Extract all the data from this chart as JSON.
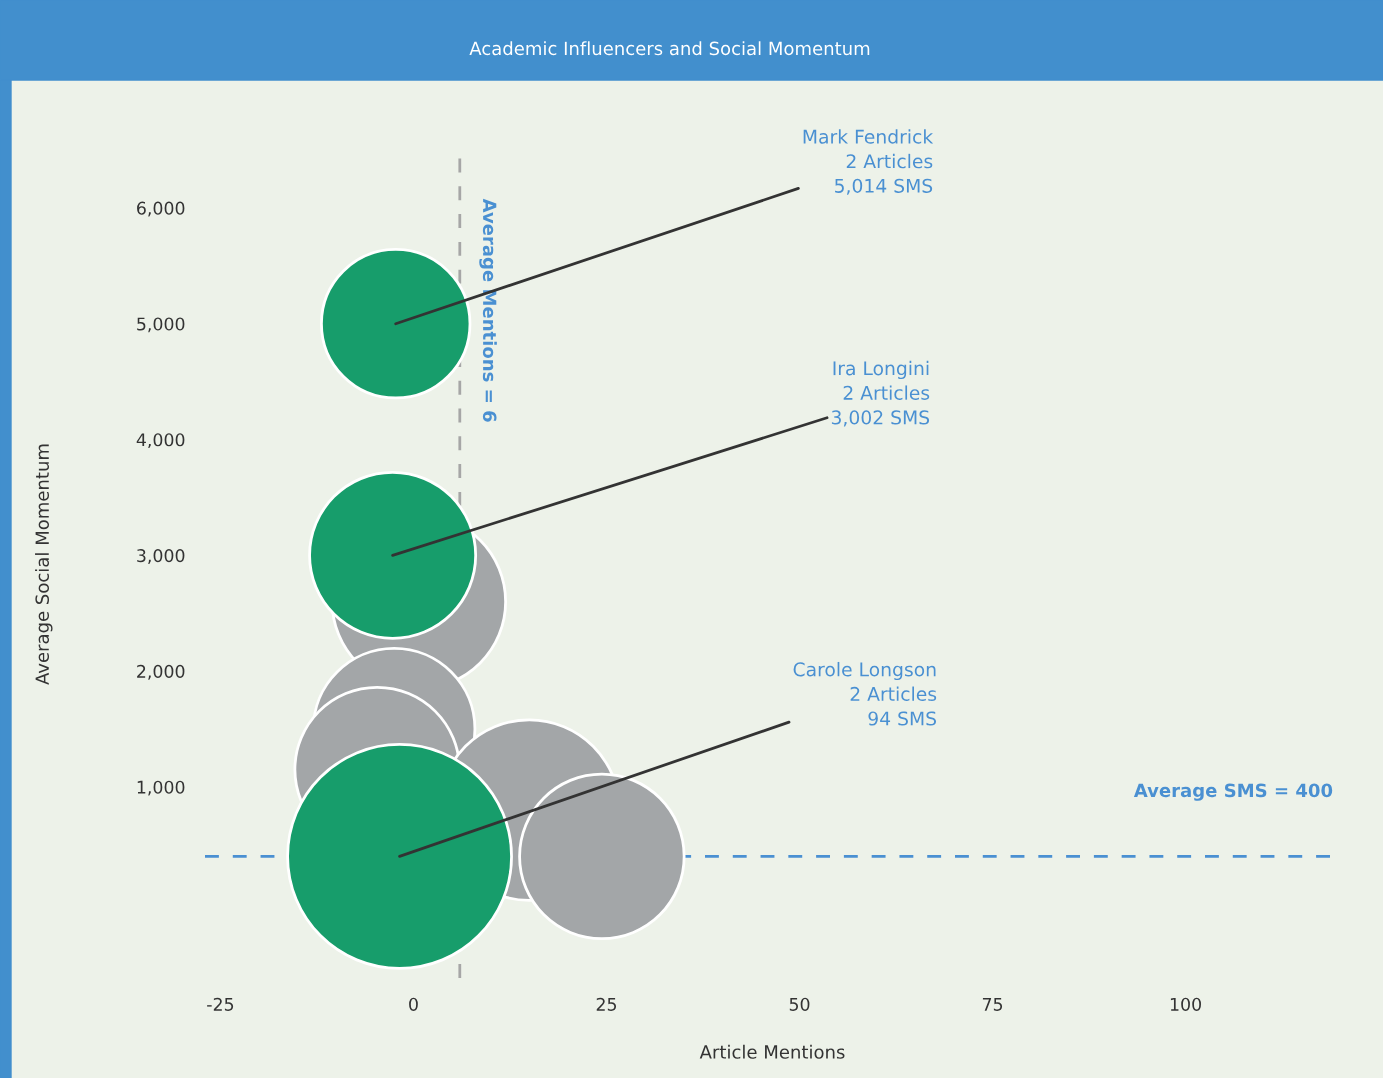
{
  "chart_data": {
    "type": "bubble",
    "title": "Academic Influencers and Social Momentum",
    "xlabel": "Article Mentions",
    "ylabel": "Average Social Momentum",
    "x": [
      0.7,
      -2.5,
      -4.7,
      15,
      24.4,
      -2.3,
      -2.7,
      -1.8
    ],
    "values": [
      2600,
      1500,
      1150,
      800,
      400,
      5000,
      3000,
      400
    ],
    "sizes": [
      0.6,
      0.52,
      0.54,
      0.65,
      0.54,
      0.44,
      0.55,
      1
    ],
    "colors": [
      "#a3a6a8",
      "#a3a6a8",
      "#a3a6a8",
      "#a3a6a8",
      "#a3a6a8",
      "#179d6b",
      "#179d6b",
      "#179d6b"
    ],
    "xlim": [
      -27,
      120
    ],
    "ylim": [
      -650,
      6500
    ],
    "xticks": [
      -25,
      0,
      25,
      50,
      75,
      100
    ],
    "yticks": [
      {
        "value": 1000,
        "label": "1,000"
      },
      {
        "value": 2000,
        "label": "2,000"
      },
      {
        "value": 3000,
        "label": "3,000"
      },
      {
        "value": 4000,
        "label": "4,000"
      },
      {
        "value": 5000,
        "label": "5,000"
      },
      {
        "value": 6000,
        "label": "6,000"
      }
    ],
    "ref_lines": [
      {
        "axis": "x",
        "value": 6,
        "label": "Average Mentions = 6",
        "color": "#a6a6a6",
        "line_style": "dashed"
      },
      {
        "axis": "y",
        "value": 400,
        "label": "Average SMS = 400",
        "color": "#4a90d2",
        "line_style": "dashed"
      }
    ],
    "annotations": [
      {
        "text": "Mark Fendrick\n2 Articles\n5,014 SMS",
        "x": -2.3,
        "y": 5000
      },
      {
        "text": "Ira Longini\n2 Articles\n3,002 SMS",
        "x": -2.7,
        "y": 3000
      },
      {
        "text": "Carole Longson\n2 Articles\n94 SMS",
        "x": -1.8,
        "y": 400
      }
    ]
  }
}
